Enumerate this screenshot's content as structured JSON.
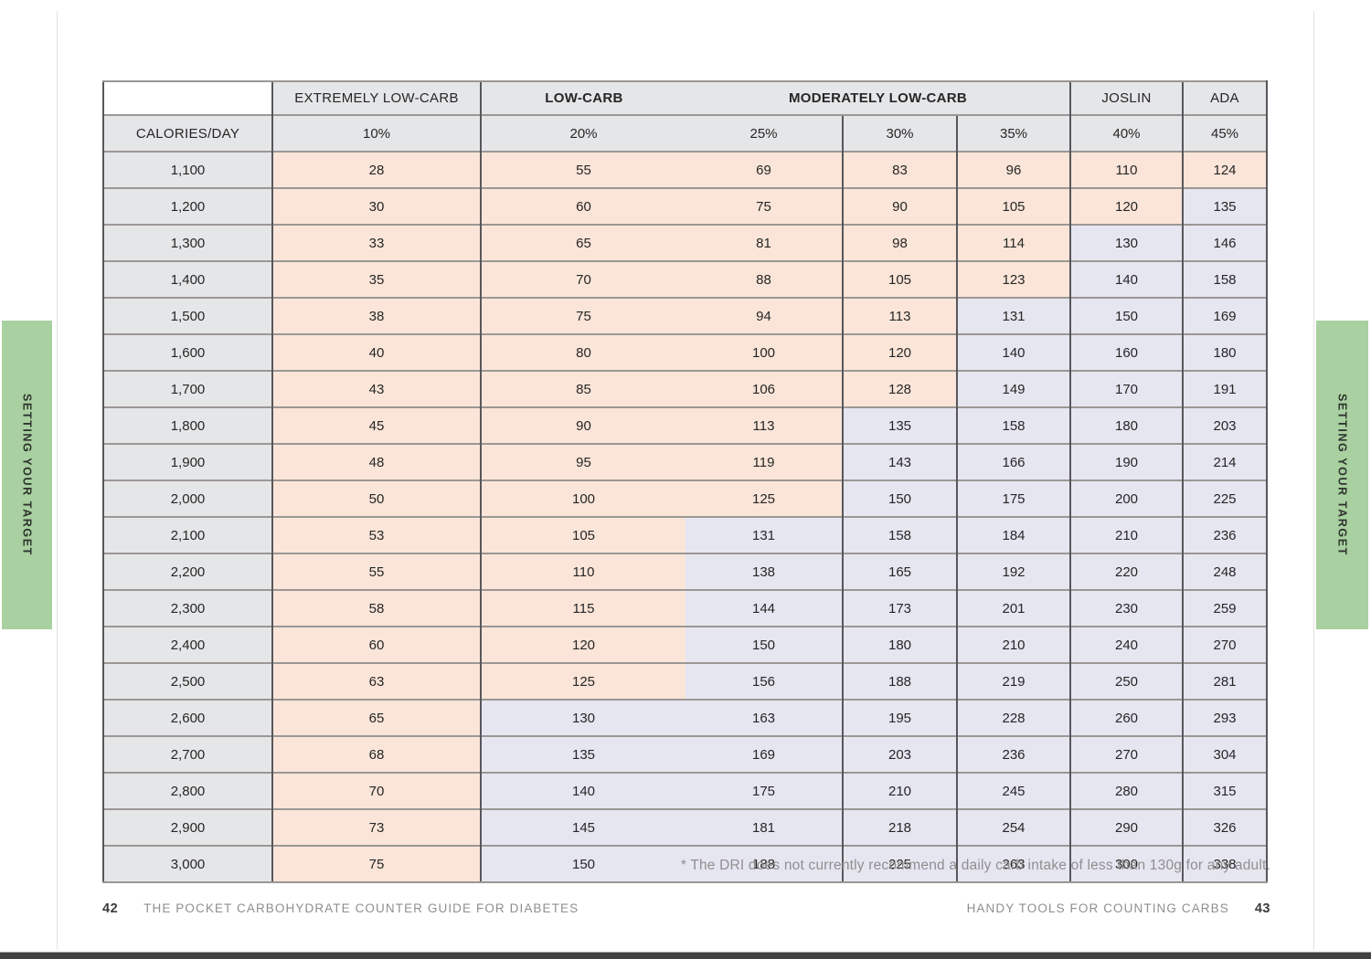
{
  "side_tabs": {
    "label": "SETTING YOUR TARGET",
    "color": "#a8d0a0"
  },
  "table": {
    "row_header": "CALORIES/DAY",
    "groups": {
      "extremely": "EXTREMELY LOW-CARB",
      "low": "LOW-CARB",
      "moderately": "MODERATELY LOW-CARB",
      "joslin": "JOSLIN",
      "ada": "ADA"
    },
    "percent_headers": [
      "10%",
      "20%",
      "25%",
      "30%",
      "35%",
      "40%",
      "45%"
    ],
    "dri_threshold": 130,
    "colors": {
      "below_threshold": "#fae5d8",
      "at_or_above_threshold": "#e6e6f1",
      "header_bg": "#e5e6e8"
    },
    "rows": [
      {
        "calories": "1,100",
        "values": [
          28,
          55,
          69,
          83,
          96,
          110,
          124
        ]
      },
      {
        "calories": "1,200",
        "values": [
          30,
          60,
          75,
          90,
          105,
          120,
          135
        ]
      },
      {
        "calories": "1,300",
        "values": [
          33,
          65,
          81,
          98,
          114,
          130,
          146
        ]
      },
      {
        "calories": "1,400",
        "values": [
          35,
          70,
          88,
          105,
          123,
          140,
          158
        ]
      },
      {
        "calories": "1,500",
        "values": [
          38,
          75,
          94,
          113,
          131,
          150,
          169
        ]
      },
      {
        "calories": "1,600",
        "values": [
          40,
          80,
          100,
          120,
          140,
          160,
          180
        ]
      },
      {
        "calories": "1,700",
        "values": [
          43,
          85,
          106,
          128,
          149,
          170,
          191
        ]
      },
      {
        "calories": "1,800",
        "values": [
          45,
          90,
          113,
          135,
          158,
          180,
          203
        ]
      },
      {
        "calories": "1,900",
        "values": [
          48,
          95,
          119,
          143,
          166,
          190,
          214
        ]
      },
      {
        "calories": "2,000",
        "values": [
          50,
          100,
          125,
          150,
          175,
          200,
          225
        ]
      },
      {
        "calories": "2,100",
        "values": [
          53,
          105,
          131,
          158,
          184,
          210,
          236
        ]
      },
      {
        "calories": "2,200",
        "values": [
          55,
          110,
          138,
          165,
          192,
          220,
          248
        ]
      },
      {
        "calories": "2,300",
        "values": [
          58,
          115,
          144,
          173,
          201,
          230,
          259
        ]
      },
      {
        "calories": "2,400",
        "values": [
          60,
          120,
          150,
          180,
          210,
          240,
          270
        ]
      },
      {
        "calories": "2,500",
        "values": [
          63,
          125,
          156,
          188,
          219,
          250,
          281
        ]
      },
      {
        "calories": "2,600",
        "values": [
          65,
          130,
          163,
          195,
          228,
          260,
          293
        ]
      },
      {
        "calories": "2,700",
        "values": [
          68,
          135,
          169,
          203,
          236,
          270,
          304
        ]
      },
      {
        "calories": "2,800",
        "values": [
          70,
          140,
          175,
          210,
          245,
          280,
          315
        ]
      },
      {
        "calories": "2,900",
        "values": [
          73,
          145,
          181,
          218,
          254,
          290,
          326
        ]
      },
      {
        "calories": "3,000",
        "values": [
          75,
          150,
          188,
          225,
          263,
          300,
          338
        ]
      }
    ]
  },
  "footnote": "* The DRI does not currently recommend a daily carb intake of less than 130g for any adult.",
  "footer": {
    "left_page": "42",
    "left_title": "THE POCKET CARBOHYDRATE COUNTER GUIDE FOR DIABETES",
    "right_title": "HANDY TOOLS FOR COUNTING CARBS",
    "right_page": "43"
  }
}
